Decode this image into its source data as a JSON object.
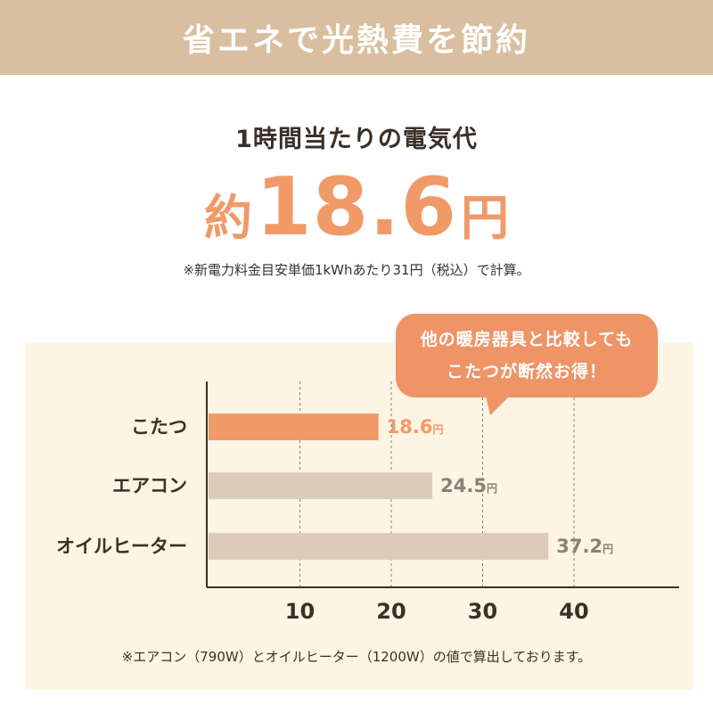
{
  "banner": {
    "title": "省エネで光熱費を節約"
  },
  "headline": {
    "subtitle": "1時間当たりの電気代",
    "price_prefix": "約",
    "price_value": "18.6",
    "price_unit": "円"
  },
  "note_top": "※新電力料金目安単価1kWhあたり31円（税込）で計算。",
  "callout": {
    "line1": "他の暖房器具と比較しても",
    "line2": "こたつが断然お得！"
  },
  "note_bottom": "※エアコン（790W）とオイルヒーター（1200W）の値で算出しております。",
  "colors": {
    "banner": "#d9bfa0",
    "accent": "#f09a68",
    "bar_other": "#dccbb8",
    "panel": "#fdf4e3",
    "text": "#3a3028",
    "value_gray": "#8a8078"
  },
  "chart_data": {
    "type": "bar",
    "orientation": "horizontal",
    "categories": [
      "こたつ",
      "エアコン",
      "オイルヒーター"
    ],
    "values": [
      18.6,
      24.5,
      37.2
    ],
    "value_labels": [
      "18.6",
      "24.5",
      "37.2"
    ],
    "value_unit": "円",
    "highlight_index": 0,
    "xticks": [
      "10",
      "20",
      "30",
      "40"
    ],
    "xtick_values": [
      10,
      20,
      30,
      40
    ],
    "xlim": [
      0,
      52
    ],
    "grid": "vertical dashed"
  }
}
